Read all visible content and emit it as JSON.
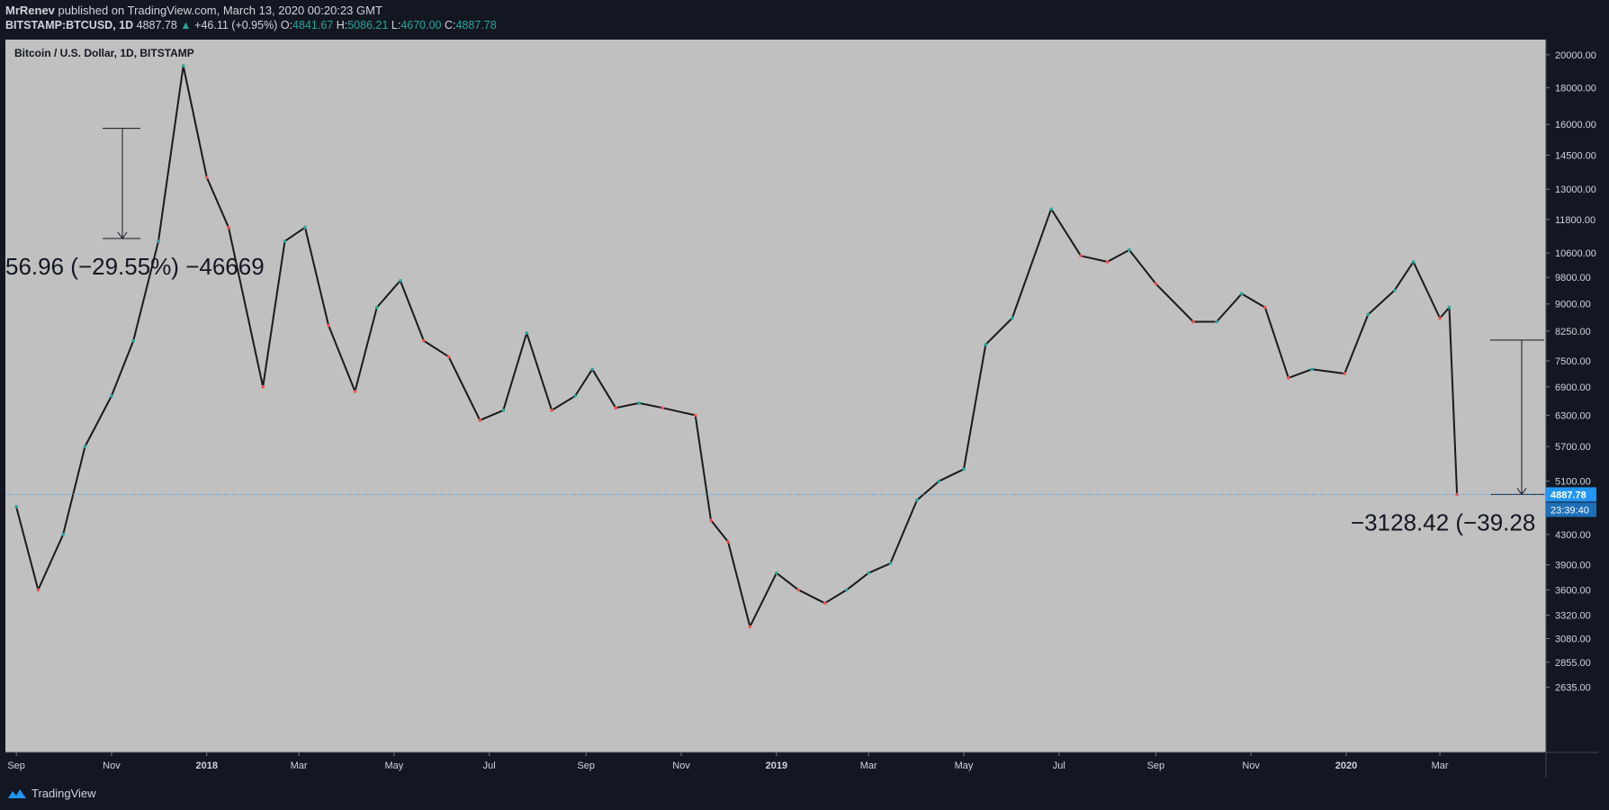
{
  "header": {
    "author": "MrRenev",
    "published_text": " published on TradingView.com, March 13, 2020 00:20:23 GMT"
  },
  "ohlc": {
    "symbol": "BITSTAMP:BTCUSD, 1D",
    "last": "4887.78",
    "change": "+46.11 (+0.95%)",
    "o_label": "O:",
    "o": "4841.67",
    "h_label": "H:",
    "h": "5086.21",
    "l_label": "L:",
    "l": "4670.00",
    "c_label": "C:",
    "c": "4887.78"
  },
  "colors": {
    "background": "#131722",
    "plot_background": "#c0c0c0",
    "up": "#26a69a",
    "down": "#ef5350",
    "accent": "#2196f3"
  },
  "chart_data": {
    "type": "line",
    "title": "Bitcoin / U.S. Dollar, 1D, BITSTAMP",
    "scale": "log",
    "ylim": [
      2400,
      20400
    ],
    "y_ticks": [
      "20000.00",
      "18000.00",
      "16000.00",
      "14500.00",
      "13000.00",
      "11800.00",
      "10600.00",
      "9800.00",
      "9000.00",
      "8250.00",
      "7500.00",
      "6900.00",
      "6300.00",
      "5700.00",
      "5100.00",
      "4300.00",
      "3900.00",
      "3600.00",
      "3320.00",
      "3080.00",
      "2855.00",
      "2635.00"
    ],
    "x_ticks": [
      "Sep",
      "Nov",
      "2018",
      "Mar",
      "May",
      "Jul",
      "Sep",
      "Nov",
      "2019",
      "Mar",
      "May",
      "Jul",
      "Sep",
      "Nov",
      "2020",
      "Mar"
    ],
    "series": [
      {
        "x": [
          "2017-09-01",
          "2017-09-15",
          "2017-10-01",
          "2017-10-15",
          "2017-11-01",
          "2017-11-15",
          "2017-12-01",
          "2017-12-17",
          "2018-01-01",
          "2018-01-15",
          "2018-02-06",
          "2018-02-20",
          "2018-03-05",
          "2018-03-20",
          "2018-04-06",
          "2018-04-20",
          "2018-05-05",
          "2018-05-20",
          "2018-06-05",
          "2018-06-25",
          "2018-07-10",
          "2018-07-25",
          "2018-08-10",
          "2018-08-25",
          "2018-09-05",
          "2018-09-20",
          "2018-10-05",
          "2018-10-20",
          "2018-11-10",
          "2018-11-20",
          "2018-12-01",
          "2018-12-15",
          "2019-01-01",
          "2019-01-15",
          "2019-02-01",
          "2019-02-15",
          "2019-03-01",
          "2019-03-15",
          "2019-04-01",
          "2019-04-15",
          "2019-05-01",
          "2019-05-15",
          "2019-06-01",
          "2019-06-26",
          "2019-07-15",
          "2019-08-01",
          "2019-08-15",
          "2019-09-01",
          "2019-09-25",
          "2019-10-10",
          "2019-10-26",
          "2019-11-10",
          "2019-11-25",
          "2019-12-10",
          "2019-12-31",
          "2020-01-15",
          "2020-02-01",
          "2020-02-13",
          "2020-03-01",
          "2020-03-07",
          "2020-03-12"
        ],
        "values": [
          4700,
          3600,
          4300,
          5700,
          6700,
          8000,
          11000,
          19300,
          13500,
          11500,
          6900,
          11000,
          11500,
          8400,
          6800,
          8900,
          9700,
          8000,
          7600,
          6200,
          6400,
          8200,
          6400,
          6700,
          7300,
          6450,
          6550,
          6450,
          6300,
          4500,
          4200,
          3200,
          3800,
          3600,
          3450,
          3600,
          3800,
          3920,
          4800,
          5100,
          5300,
          7900,
          8600,
          12200,
          10500,
          10300,
          10700,
          9600,
          8500,
          8500,
          9300,
          8900,
          7100,
          7300,
          7200,
          8700,
          9400,
          10300,
          8600,
          8900,
          4887.78
        ]
      }
    ],
    "annotations": [
      {
        "label": "56.96 (−29.55%) −46669",
        "from": 15800,
        "to": 11100
      },
      {
        "label": "−3128.42 (−39.28",
        "from": 8016,
        "to": 4887.78
      }
    ],
    "last_price_tag": "4887.78",
    "countdown_tag": "23:39:40",
    "grid": false
  },
  "footer": {
    "brand": "TradingView",
    "logo_icon": "tradingview-logo-icon"
  }
}
